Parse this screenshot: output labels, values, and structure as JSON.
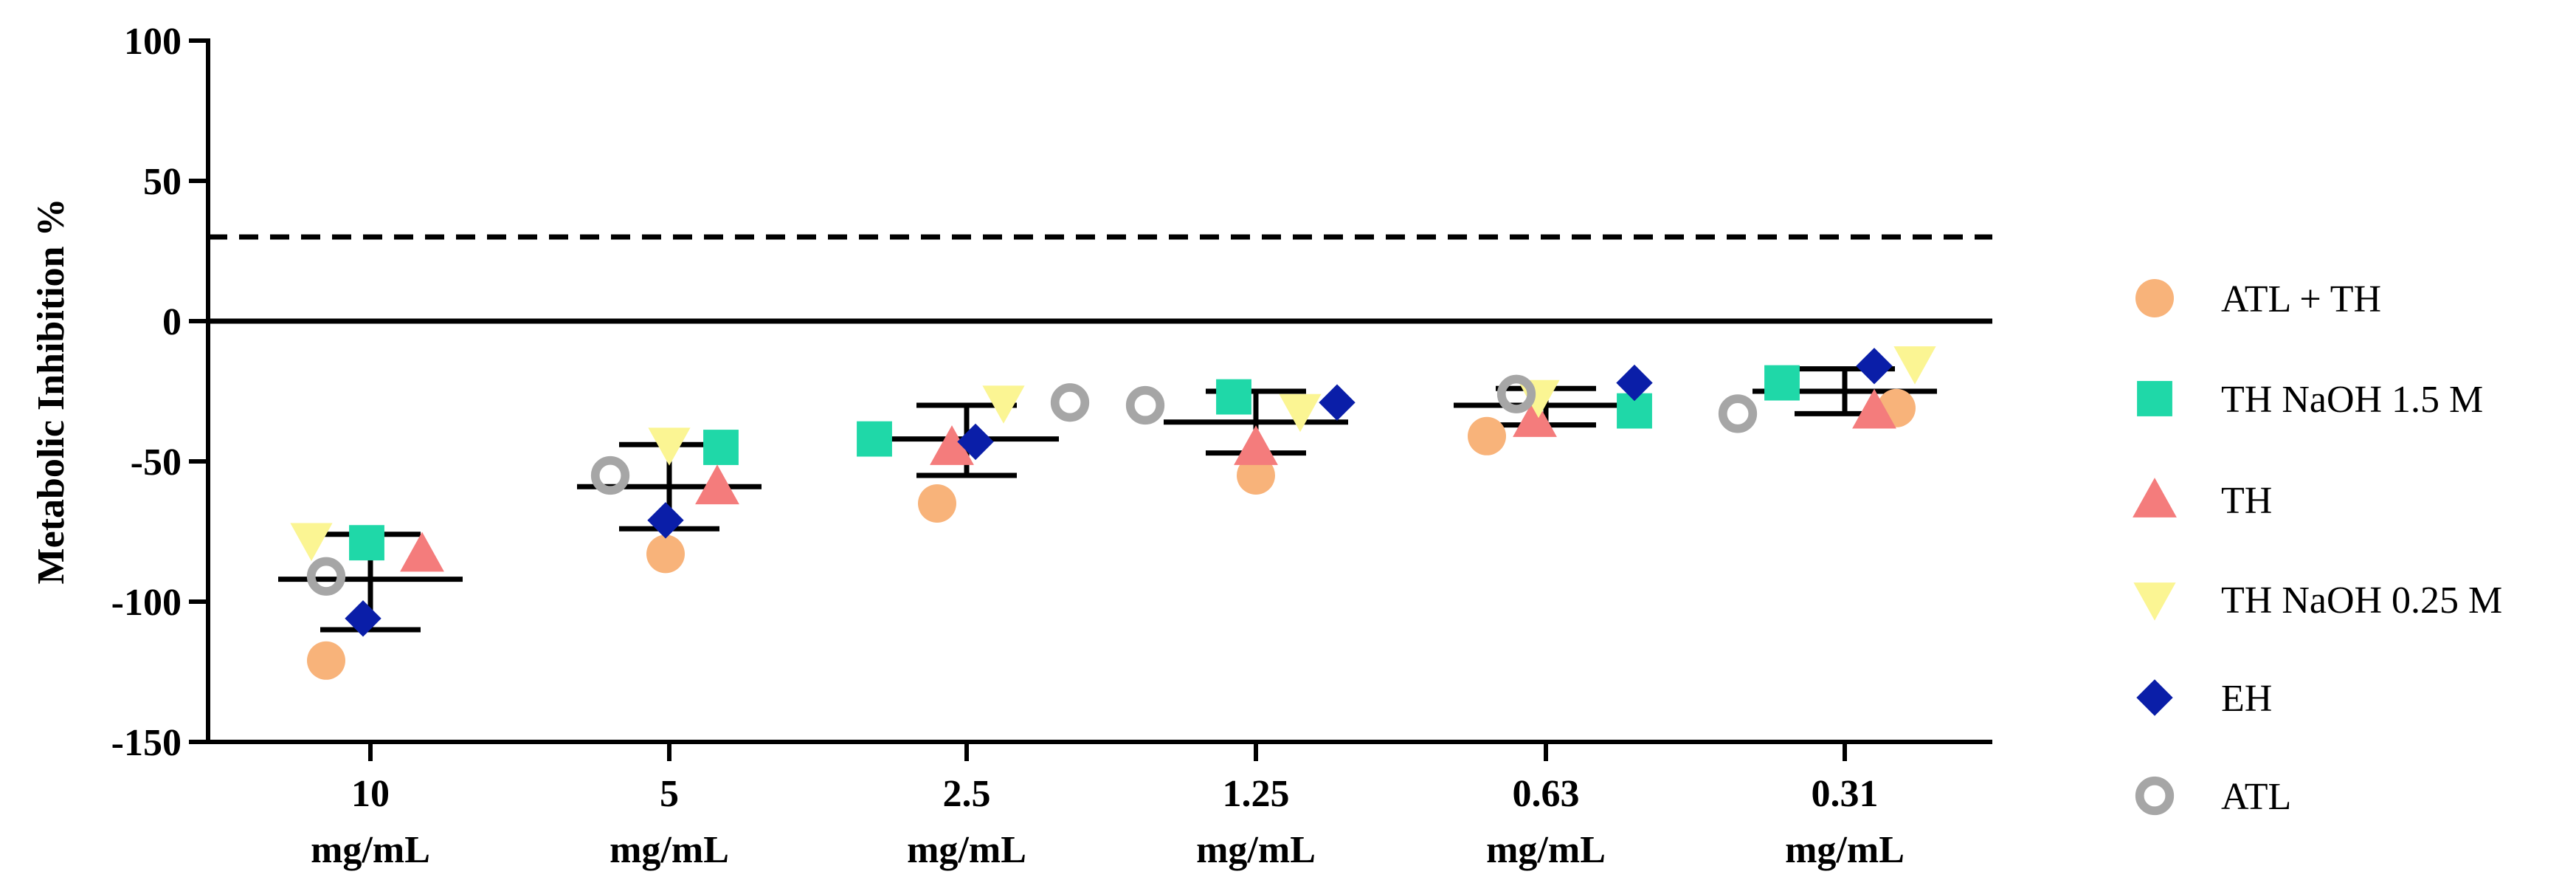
{
  "chart_data": {
    "type": "scatter",
    "ylabel": "Metabolic Inhibition %",
    "ylim": [
      -150,
      100
    ],
    "yticks": [
      100,
      50,
      0,
      -50,
      -100,
      -150
    ],
    "reference_lines": [
      {
        "y": 30,
        "style": "dashed"
      },
      {
        "y": 0,
        "style": "solid"
      }
    ],
    "categories": [
      {
        "value": "10",
        "unit": "mg/mL"
      },
      {
        "value": "5",
        "unit": "mg/mL"
      },
      {
        "value": "2.5",
        "unit": "mg/mL"
      },
      {
        "value": "1.25",
        "unit": "mg/mL"
      },
      {
        "value": "0.63",
        "unit": "mg/mL"
      },
      {
        "value": "0.31",
        "unit": "mg/mL"
      }
    ],
    "summary": {
      "mean": [
        -92,
        -59,
        -42,
        -36,
        -30,
        -25
      ],
      "error_low": [
        -110,
        -74,
        -55,
        -47,
        -37,
        -33
      ],
      "error_high": [
        -76,
        -44,
        -30,
        -25,
        -24,
        -17
      ]
    },
    "series": [
      {
        "name": "ATL + TH",
        "marker": "circle",
        "color": "#F8B37A",
        "values": [
          -121,
          -83,
          -65,
          -55,
          -41,
          -31
        ]
      },
      {
        "name": "TH NaOH 1.5 M",
        "marker": "square",
        "color": "#1FD8A8",
        "values": [
          -79,
          -45,
          -42,
          -27,
          -32,
          -22
        ]
      },
      {
        "name": "TH",
        "marker": "triangle-up",
        "color": "#F47C7C",
        "values": [
          -83,
          -59,
          -45,
          -45,
          -35,
          -32
        ]
      },
      {
        "name": "TH NaOH 0.25 M",
        "marker": "triangle-down",
        "color": "#FBF593",
        "values": [
          -78,
          -44,
          -29,
          -32,
          -27,
          -15
        ]
      },
      {
        "name": "EH",
        "marker": "diamond",
        "color": "#0A1EA8",
        "values": [
          -106,
          -71,
          -43,
          -29,
          -22,
          -16
        ]
      },
      {
        "name": "ATL",
        "marker": "open-circle",
        "color": "#A6A6A6",
        "values": [
          -91,
          -55,
          -29,
          -30,
          -26,
          -33
        ]
      }
    ]
  }
}
